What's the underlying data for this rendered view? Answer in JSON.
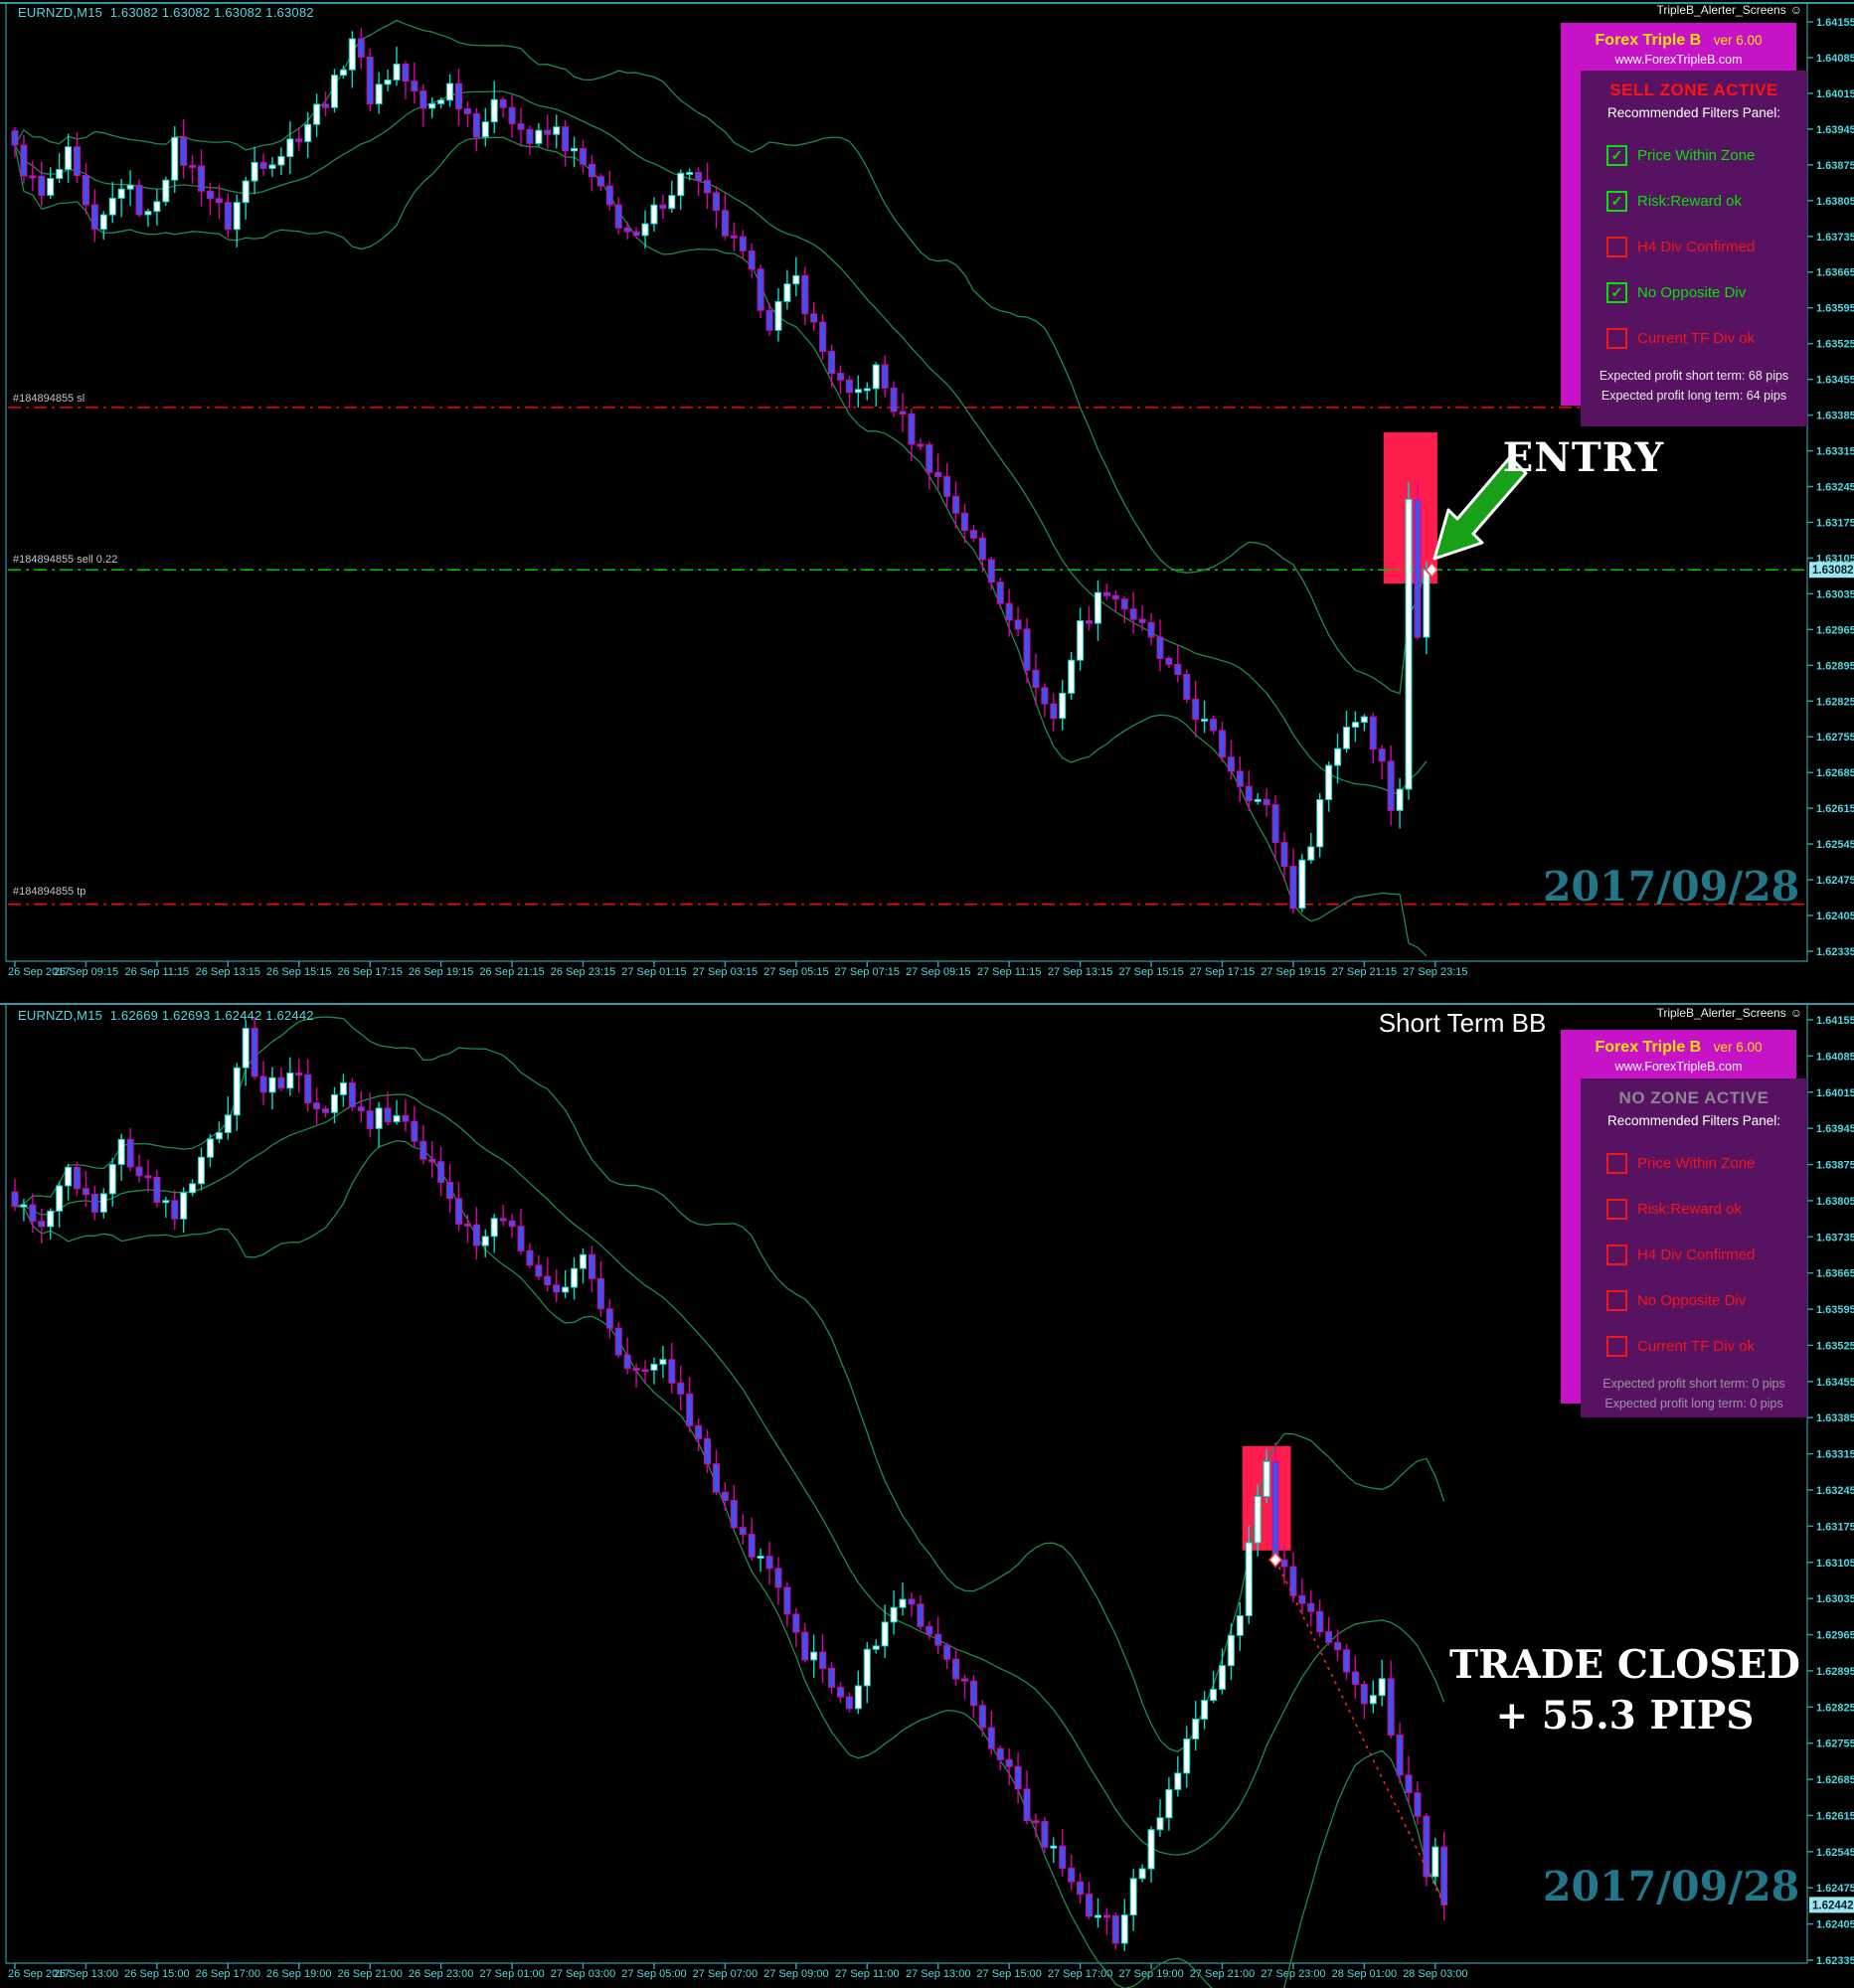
{
  "app": {
    "alerter_smiley": "☺"
  },
  "colors": {
    "frame_teal": "#2f9aa8",
    "axis_text_teal": "#4fd8e2",
    "date_teal": "#217789",
    "panel_magenta": "#c713c7",
    "panel_purple": "#571361",
    "zone_pink": "#ff1d4e",
    "bull_border": "#00dcc8",
    "bull_fill": "#ffffff",
    "bear_border": "#db00a0",
    "bear_fill": "#3d52f2",
    "bollinger_green": "#1f8a4c",
    "stop_red": "#ff0000",
    "sell_green": "#00c800",
    "check_green": "#00e600",
    "uncheck_red": "#f21616",
    "price_tag_bg": "#9fe4ef",
    "arrow_green": "#18a018",
    "white": "#ffffff",
    "zone_active_red": "#ff1212",
    "zone_inactive_gray": "#8f8594",
    "profit_white": "#eaeaea",
    "profit_gray": "#9d93a5"
  },
  "panels": [
    {
      "title_bold": "Forex Triple B",
      "version": "ver 6.00",
      "website": "www.ForexTripleB.com",
      "zone_status": "SELL ZONE ACTIVE",
      "zone_color": "#ff1212",
      "filters_heading": "Recommended Filters Panel:",
      "filters": [
        {
          "label": "Price Within Zone",
          "checked": true,
          "ok": true
        },
        {
          "label": "Risk:Reward ok",
          "checked": true,
          "ok": true
        },
        {
          "label": "H4 Div Confirmed",
          "checked": false,
          "ok": false
        },
        {
          "label": "No Opposite Div",
          "checked": true,
          "ok": true
        },
        {
          "label": "Current TF Div ok",
          "checked": false,
          "ok": false
        }
      ],
      "profit_short": "Expected profit short term: 68 pips",
      "profit_long": "Expected profit long term: 64 pips",
      "profit_color": "#eaeaea"
    },
    {
      "title_bold": "Forex Triple B",
      "version": "ver 6.00",
      "website": "www.ForexTripleB.com",
      "zone_status": "NO ZONE ACTIVE",
      "zone_color": "#8f8594",
      "filters_heading": "Recommended Filters Panel:",
      "filters": [
        {
          "label": "Price Within Zone",
          "checked": false,
          "ok": false
        },
        {
          "label": "Risk:Reward ok",
          "checked": false,
          "ok": false
        },
        {
          "label": "H4 Div Confirmed",
          "checked": false,
          "ok": false
        },
        {
          "label": "No Opposite Div",
          "checked": false,
          "ok": false
        },
        {
          "label": "Current TF Div ok",
          "checked": false,
          "ok": false
        }
      ],
      "profit_short": "Expected profit short term: 0 pips",
      "profit_long": "Expected profit long term: 0 pips",
      "profit_color": "#9d93a5"
    }
  ],
  "chart_data": [
    {
      "name": "top-chart",
      "type": "candlestick",
      "symbol_title": "EURNZD,M15  1.63082 1.63082 1.63082 1.63082",
      "alerter_label": "TripleB_Alerter_Screens",
      "price_axis": {
        "max": 1.64155,
        "min": 1.62335,
        "step": 0.0007,
        "current_label": "1.63082",
        "current_price": 1.63082
      },
      "time_labels": [
        "26 Sep 2017",
        "26 Sep 09:15",
        "26 Sep 11:15",
        "26 Sep 13:15",
        "26 Sep 15:15",
        "26 Sep 17:15",
        "26 Sep 19:15",
        "26 Sep 21:15",
        "26 Sep 23:15",
        "27 Sep 01:15",
        "27 Sep 03:15",
        "27 Sep 05:15",
        "27 Sep 07:15",
        "27 Sep 09:15",
        "27 Sep 11:15",
        "27 Sep 13:15",
        "27 Sep 15:15",
        "27 Sep 17:15",
        "27 Sep 19:15",
        "27 Sep 21:15",
        "27 Sep 23:15"
      ],
      "candles": {
        "count": 160,
        "close_path": [
          [
            0,
            1.639
          ],
          [
            3,
            1.6381
          ],
          [
            6,
            1.6389
          ],
          [
            9,
            1.6373
          ],
          [
            12,
            1.6384
          ],
          [
            15,
            1.6377
          ],
          [
            18,
            1.6391
          ],
          [
            21,
            1.6384
          ],
          [
            24,
            1.6376
          ],
          [
            27,
            1.6388
          ],
          [
            30,
            1.639
          ],
          [
            33,
            1.6396
          ],
          [
            36,
            1.6403
          ],
          [
            38,
            1.6413
          ],
          [
            40,
            1.6401
          ],
          [
            43,
            1.6407
          ],
          [
            46,
            1.6398
          ],
          [
            49,
            1.6403
          ],
          [
            52,
            1.6395
          ],
          [
            55,
            1.64
          ],
          [
            58,
            1.6392
          ],
          [
            61,
            1.6394
          ],
          [
            64,
            1.6387
          ],
          [
            67,
            1.6379
          ],
          [
            70,
            1.6372
          ],
          [
            73,
            1.6381
          ],
          [
            76,
            1.6387
          ],
          [
            79,
            1.6377
          ],
          [
            82,
            1.6369
          ],
          [
            85,
            1.6357
          ],
          [
            88,
            1.6365
          ],
          [
            91,
            1.6351
          ],
          [
            94,
            1.6341
          ],
          [
            97,
            1.6347
          ],
          [
            100,
            1.6337
          ],
          [
            103,
            1.6329
          ],
          [
            106,
            1.632
          ],
          [
            109,
            1.631
          ],
          [
            112,
            1.63
          ],
          [
            115,
            1.6285
          ],
          [
            117,
            1.6279
          ],
          [
            120,
            1.6297
          ],
          [
            123,
            1.6305
          ],
          [
            126,
            1.6299
          ],
          [
            129,
            1.6291
          ],
          [
            132,
            1.6283
          ],
          [
            135,
            1.6275
          ],
          [
            138,
            1.6267
          ],
          [
            141,
            1.6261
          ],
          [
            143,
            1.625
          ],
          [
            144,
            1.62435
          ],
          [
            146,
            1.6256
          ],
          [
            148,
            1.627
          ],
          [
            150,
            1.6278
          ],
          [
            152,
            1.628
          ],
          [
            154,
            1.627
          ],
          [
            155,
            1.6262
          ],
          [
            156,
            1.6266
          ],
          [
            157,
            1.6322,
            1
          ],
          [
            158,
            1.6295,
            1
          ],
          [
            159,
            1.63082,
            1
          ]
        ]
      },
      "bollinger": {
        "period": 20,
        "deviations": 2
      },
      "order_lines": [
        {
          "id": "sl",
          "label": "#184894855 sl",
          "price": 1.634,
          "color": "#ff0000"
        },
        {
          "id": "sell",
          "label": "#184894855 sell 0.22",
          "price": 1.63082,
          "color": "#00c800"
        },
        {
          "id": "tp",
          "label": "#184894855 tp",
          "price": 1.62427,
          "color": "#ff0000"
        }
      ],
      "zone": {
        "from": 154.5,
        "to": 159.9,
        "top": 1.63351,
        "bottom": 1.63055
      },
      "markers": [
        {
          "type": "diamond",
          "index": 159.6,
          "price": 1.63082
        }
      ],
      "annotations": {
        "entry": "ENTRY",
        "date": "2017/09/28"
      }
    },
    {
      "name": "bottom-chart",
      "type": "candlestick",
      "symbol_title": "EURNZD,M15  1.62669 1.62693 1.62442 1.62442",
      "alerter_label": "TripleB_Alerter_Screens",
      "price_axis": {
        "max": 1.64155,
        "min": 1.62335,
        "step": 0.0007,
        "current_label": "1.62442",
        "current_price": 1.62442
      },
      "time_labels": [
        "26 Sep 2017",
        "26 Sep 13:00",
        "26 Sep 15:00",
        "26 Sep 17:00",
        "26 Sep 19:00",
        "26 Sep 21:00",
        "26 Sep 23:00",
        "27 Sep 01:00",
        "27 Sep 03:00",
        "27 Sep 05:00",
        "27 Sep 07:00",
        "27 Sep 09:00",
        "27 Sep 11:00",
        "27 Sep 13:00",
        "27 Sep 15:00",
        "27 Sep 17:00",
        "27 Sep 19:00",
        "27 Sep 21:00",
        "27 Sep 23:00",
        "28 Sep 01:00",
        "28 Sep 03:00"
      ],
      "candles": {
        "count": 162,
        "close_path": [
          [
            0,
            1.6381
          ],
          [
            3,
            1.6374
          ],
          [
            6,
            1.6386
          ],
          [
            9,
            1.6379
          ],
          [
            12,
            1.6391
          ],
          [
            15,
            1.6384
          ],
          [
            18,
            1.6377
          ],
          [
            21,
            1.639
          ],
          [
            24,
            1.6398
          ],
          [
            26,
            1.6412
          ],
          [
            28,
            1.6401
          ],
          [
            31,
            1.6406
          ],
          [
            34,
            1.6397
          ],
          [
            37,
            1.6403
          ],
          [
            40,
            1.6395
          ],
          [
            43,
            1.6399
          ],
          [
            46,
            1.639
          ],
          [
            49,
            1.638
          ],
          [
            52,
            1.6371
          ],
          [
            55,
            1.6378
          ],
          [
            58,
            1.637
          ],
          [
            61,
            1.6363
          ],
          [
            64,
            1.6369
          ],
          [
            67,
            1.6356
          ],
          [
            70,
            1.6346
          ],
          [
            73,
            1.6349
          ],
          [
            76,
            1.6338
          ],
          [
            79,
            1.6326
          ],
          [
            82,
            1.6316
          ],
          [
            85,
            1.6308
          ],
          [
            88,
            1.6296
          ],
          [
            91,
            1.6289
          ],
          [
            94,
            1.6284
          ],
          [
            97,
            1.6296
          ],
          [
            100,
            1.6304
          ],
          [
            103,
            1.6298
          ],
          [
            106,
            1.6289
          ],
          [
            109,
            1.6279
          ],
          [
            112,
            1.6269
          ],
          [
            115,
            1.6259
          ],
          [
            118,
            1.6252
          ],
          [
            121,
            1.6244
          ],
          [
            124,
            1.6238
          ],
          [
            126,
            1.6248
          ],
          [
            128,
            1.6258
          ],
          [
            130,
            1.6266
          ],
          [
            133,
            1.628
          ],
          [
            136,
            1.6292
          ],
          [
            138,
            1.6299
          ],
          [
            139,
            1.6315
          ],
          [
            141,
            1.633,
            1
          ],
          [
            142,
            1.6311,
            1
          ],
          [
            144,
            1.6305
          ],
          [
            146,
            1.63
          ],
          [
            148,
            1.6297
          ],
          [
            150,
            1.629
          ],
          [
            152,
            1.6282
          ],
          [
            154,
            1.6288
          ],
          [
            156,
            1.627
          ],
          [
            158,
            1.6262
          ],
          [
            159,
            1.625
          ],
          [
            160,
            1.6256
          ],
          [
            161,
            1.62442,
            1
          ]
        ]
      },
      "bollinger": {
        "period": 20,
        "deviations": 2
      },
      "order_lines": [],
      "zone": {
        "from": 138.6,
        "to": 143.4,
        "top": 1.6333,
        "bottom": 1.63128
      },
      "markers": [
        {
          "type": "diamond",
          "index": 142,
          "price": 1.6311
        }
      ],
      "trend_line": {
        "from": [
          142,
          1.6311
        ],
        "to": [
          161,
          1.62442
        ]
      },
      "annotations": {
        "corner_label": "Short Term BB",
        "closed_line1": "TRADE CLOSED",
        "closed_line2": "+ 55.3 PIPS",
        "date": "2017/09/28"
      }
    }
  ]
}
